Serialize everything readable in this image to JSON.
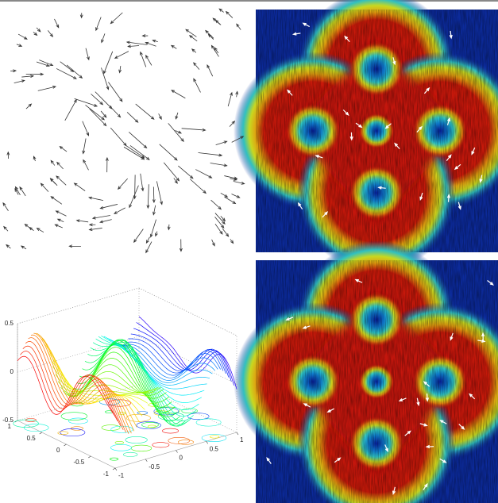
{
  "chart_data": {
    "type": "surface3d",
    "xlim": [
      -1,
      1
    ],
    "ylim": [
      -1,
      1
    ],
    "zlim": [
      -0.5,
      0.5
    ],
    "xticks": [
      -1,
      -0.5,
      0,
      0.5,
      1
    ],
    "yticks": [
      -1,
      -0.5,
      0,
      0.5,
      1
    ],
    "zticks": [
      -0.5,
      0,
      0.5
    ]
  }
}
